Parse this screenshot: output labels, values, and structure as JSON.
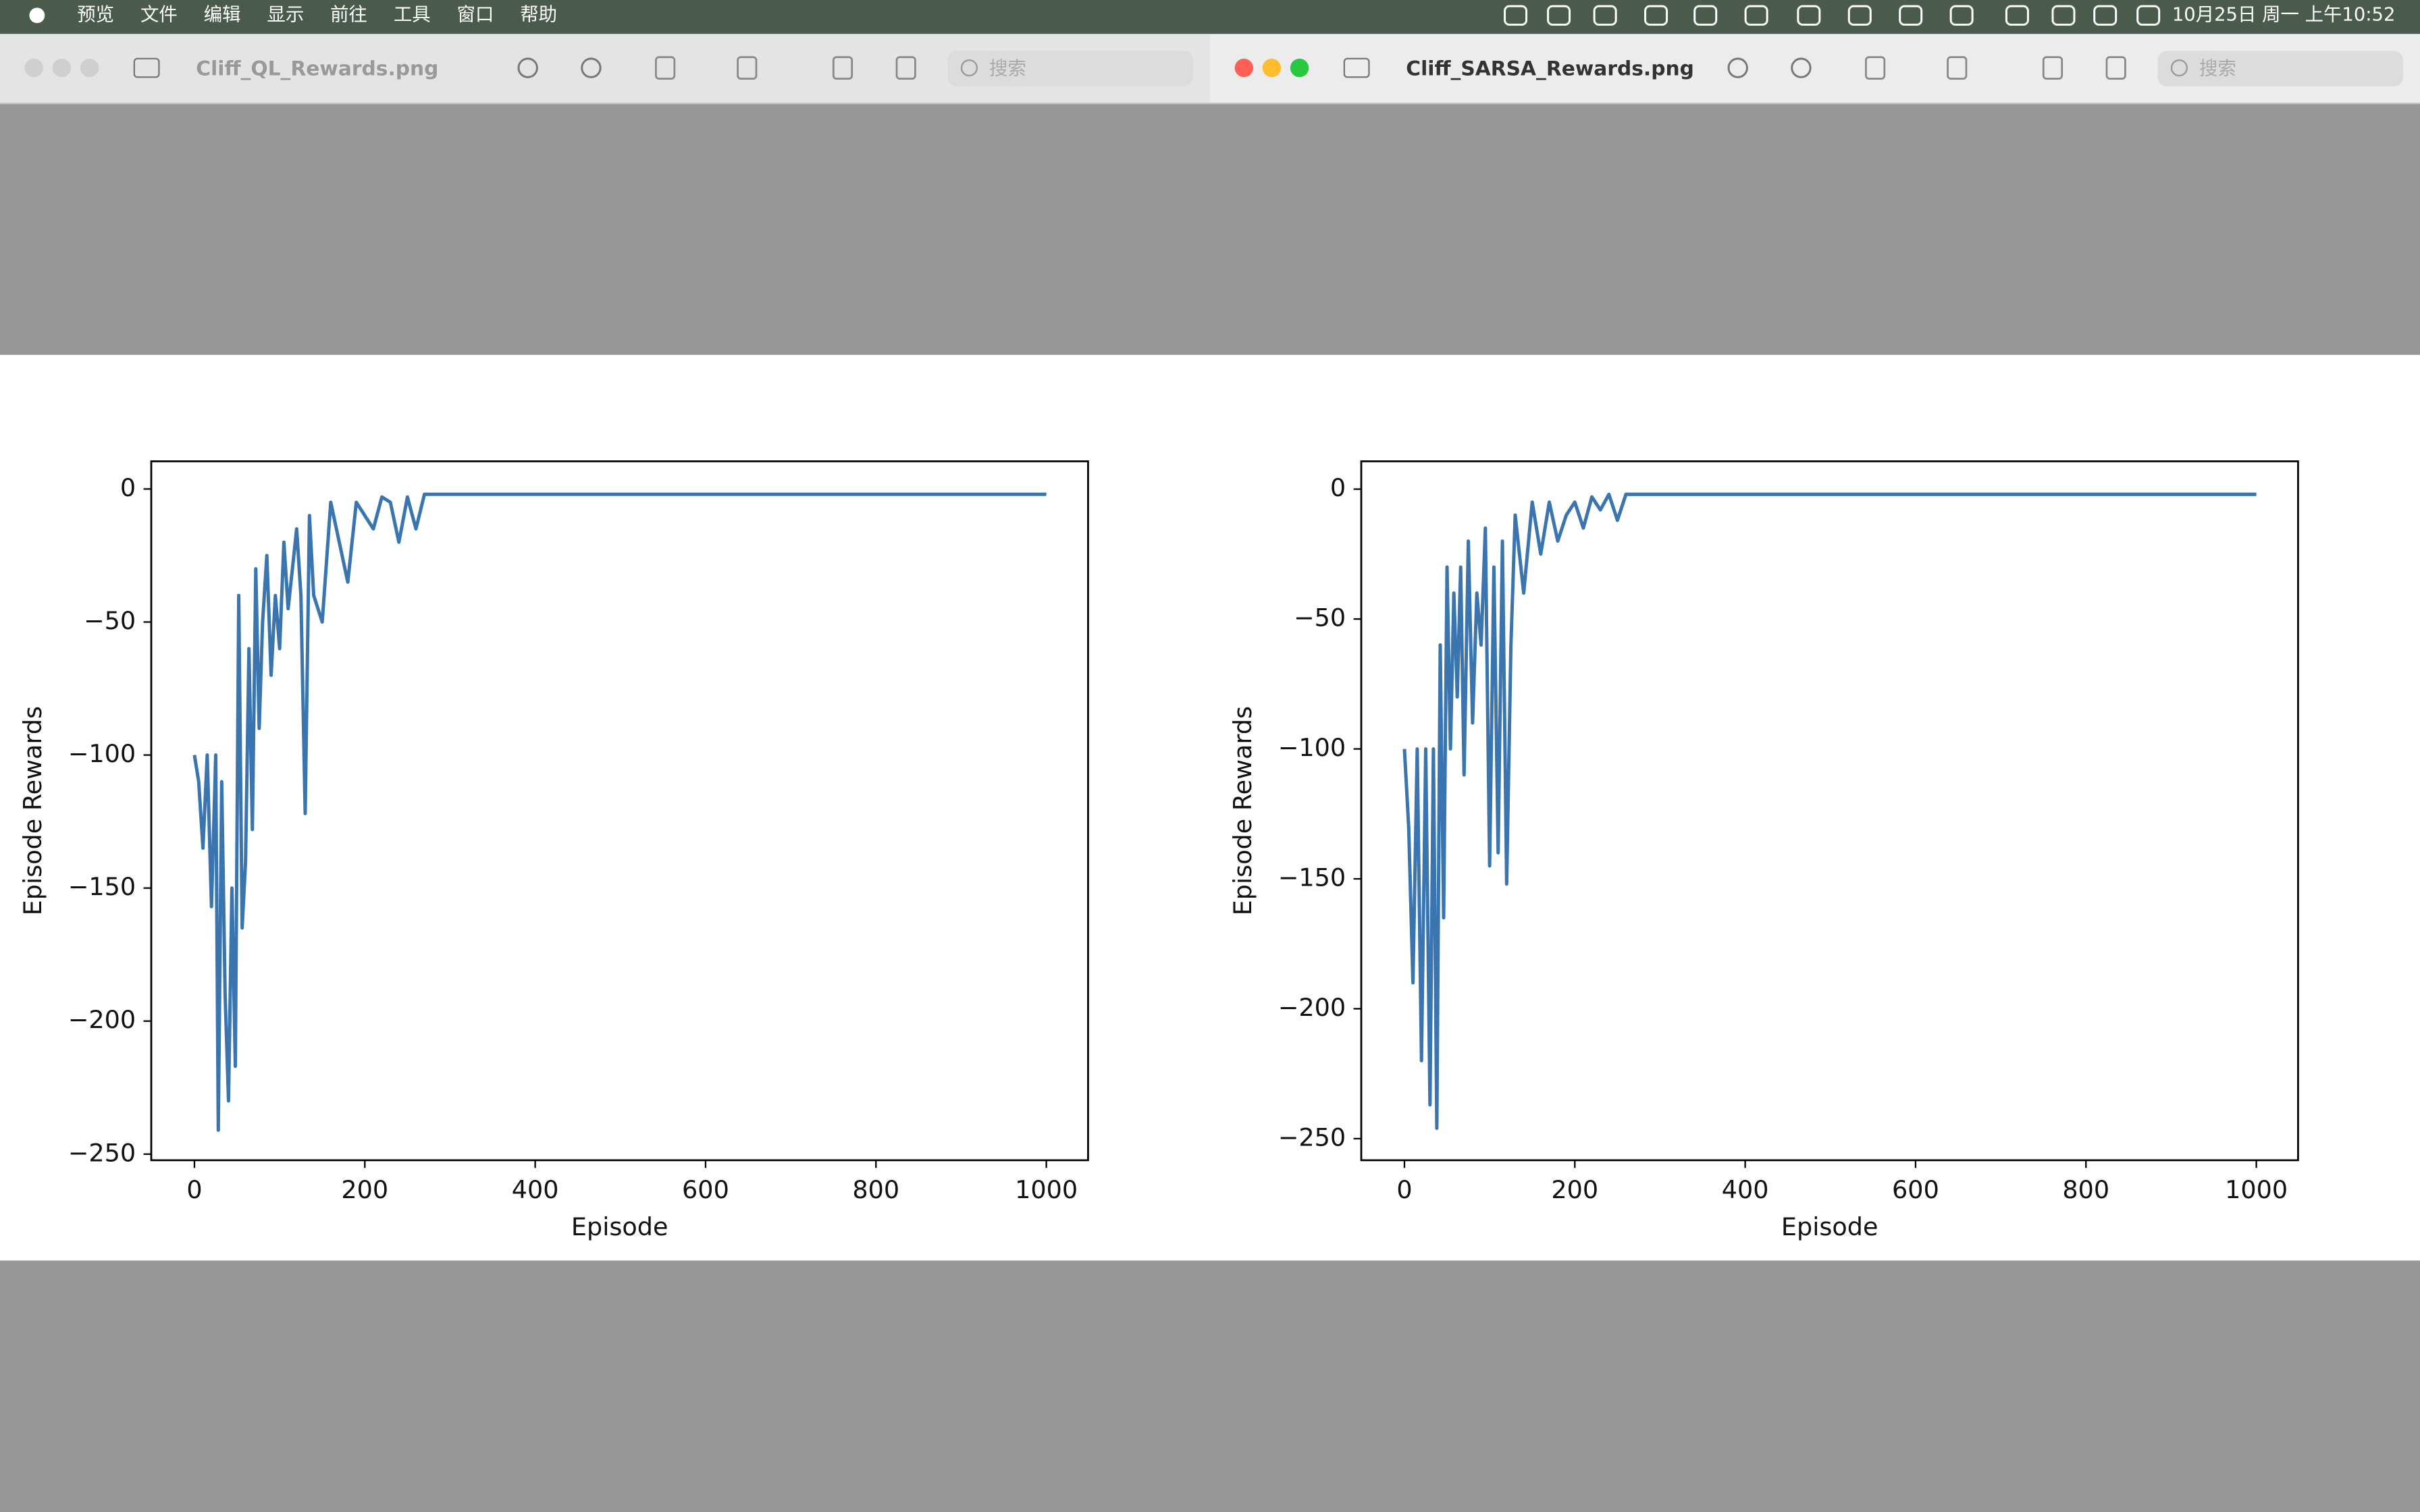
{
  "menu_bar": {
    "items": [
      "预览",
      "文件",
      "编辑",
      "显示",
      "前往",
      "工具",
      "窗口",
      "帮助"
    ],
    "clock": "10月25日 周一 上午10:52"
  },
  "windows": [
    {
      "title": "Cliff_QL_Rewards.png",
      "search": "搜索"
    },
    {
      "title": "Cliff_SARSA_Rewards.png",
      "search": "搜索"
    }
  ],
  "chart_data": [
    {
      "type": "line",
      "xlabel": "Episode",
      "ylabel": "Episode Rewards",
      "color": "#3a75b0",
      "x": [
        0,
        5,
        10,
        15,
        20,
        25,
        28,
        32,
        36,
        40,
        44,
        48,
        52,
        56,
        60,
        64,
        68,
        72,
        76,
        80,
        85,
        90,
        95,
        100,
        105,
        110,
        115,
        120,
        125,
        130,
        135,
        140,
        150,
        160,
        170,
        180,
        190,
        200,
        210,
        220,
        230,
        240,
        250,
        260,
        270,
        280,
        1000
      ],
      "values": [
        -100,
        -110,
        -135,
        -100,
        -157,
        -100,
        -241,
        -110,
        -190,
        -230,
        -150,
        -217,
        -40,
        -165,
        -140,
        -60,
        -128,
        -30,
        -90,
        -50,
        -25,
        -70,
        -40,
        -60,
        -20,
        -45,
        -30,
        -15,
        -40,
        -122,
        -10,
        -40,
        -50,
        -5,
        -20,
        -35,
        -5,
        -10,
        -15,
        -3,
        -5,
        -20,
        -3,
        -15,
        -2,
        -2,
        -2
      ],
      "xlim": [
        -50.7,
        1049
      ],
      "ylim": [
        -252.3,
        10.4
      ],
      "xticks": [
        0,
        200,
        400,
        600,
        800,
        1000
      ],
      "yticks": [
        0,
        {
          "value": -50,
          "label": "−50"
        },
        {
          "value": -100,
          "label": "−100"
        },
        {
          "value": -150,
          "label": "−150"
        },
        {
          "value": -200,
          "label": "−200"
        },
        {
          "value": -250,
          "label": "−250"
        }
      ]
    },
    {
      "type": "line",
      "xlabel": "Episode",
      "ylabel": "Episode Rewards",
      "color": "#3a75b0",
      "x": [
        0,
        5,
        10,
        15,
        20,
        25,
        30,
        34,
        38,
        42,
        46,
        50,
        54,
        58,
        62,
        66,
        70,
        75,
        80,
        85,
        90,
        95,
        100,
        105,
        110,
        115,
        120,
        125,
        130,
        140,
        150,
        160,
        170,
        180,
        190,
        200,
        210,
        220,
        230,
        240,
        250,
        260,
        1000
      ],
      "values": [
        -100,
        -130,
        -190,
        -100,
        -220,
        -100,
        -237,
        -100,
        -246,
        -60,
        -165,
        -30,
        -100,
        -40,
        -80,
        -30,
        -110,
        -20,
        -90,
        -40,
        -60,
        -15,
        -145,
        -30,
        -140,
        -20,
        -152,
        -60,
        -10,
        -40,
        -5,
        -25,
        -5,
        -20,
        -10,
        -5,
        -15,
        -3,
        -8,
        -2,
        -12,
        -2,
        -2
      ],
      "xlim": [
        -50.7,
        1049
      ],
      "ylim": [
        -258.3,
        10.7
      ],
      "xticks": [
        0,
        200,
        400,
        600,
        800,
        1000
      ],
      "yticks": [
        0,
        {
          "value": -50,
          "label": "−50"
        },
        {
          "value": -100,
          "label": "−100"
        },
        {
          "value": -150,
          "label": "−150"
        },
        {
          "value": -200,
          "label": "−200"
        },
        {
          "value": -250,
          "label": "−250"
        }
      ]
    }
  ]
}
